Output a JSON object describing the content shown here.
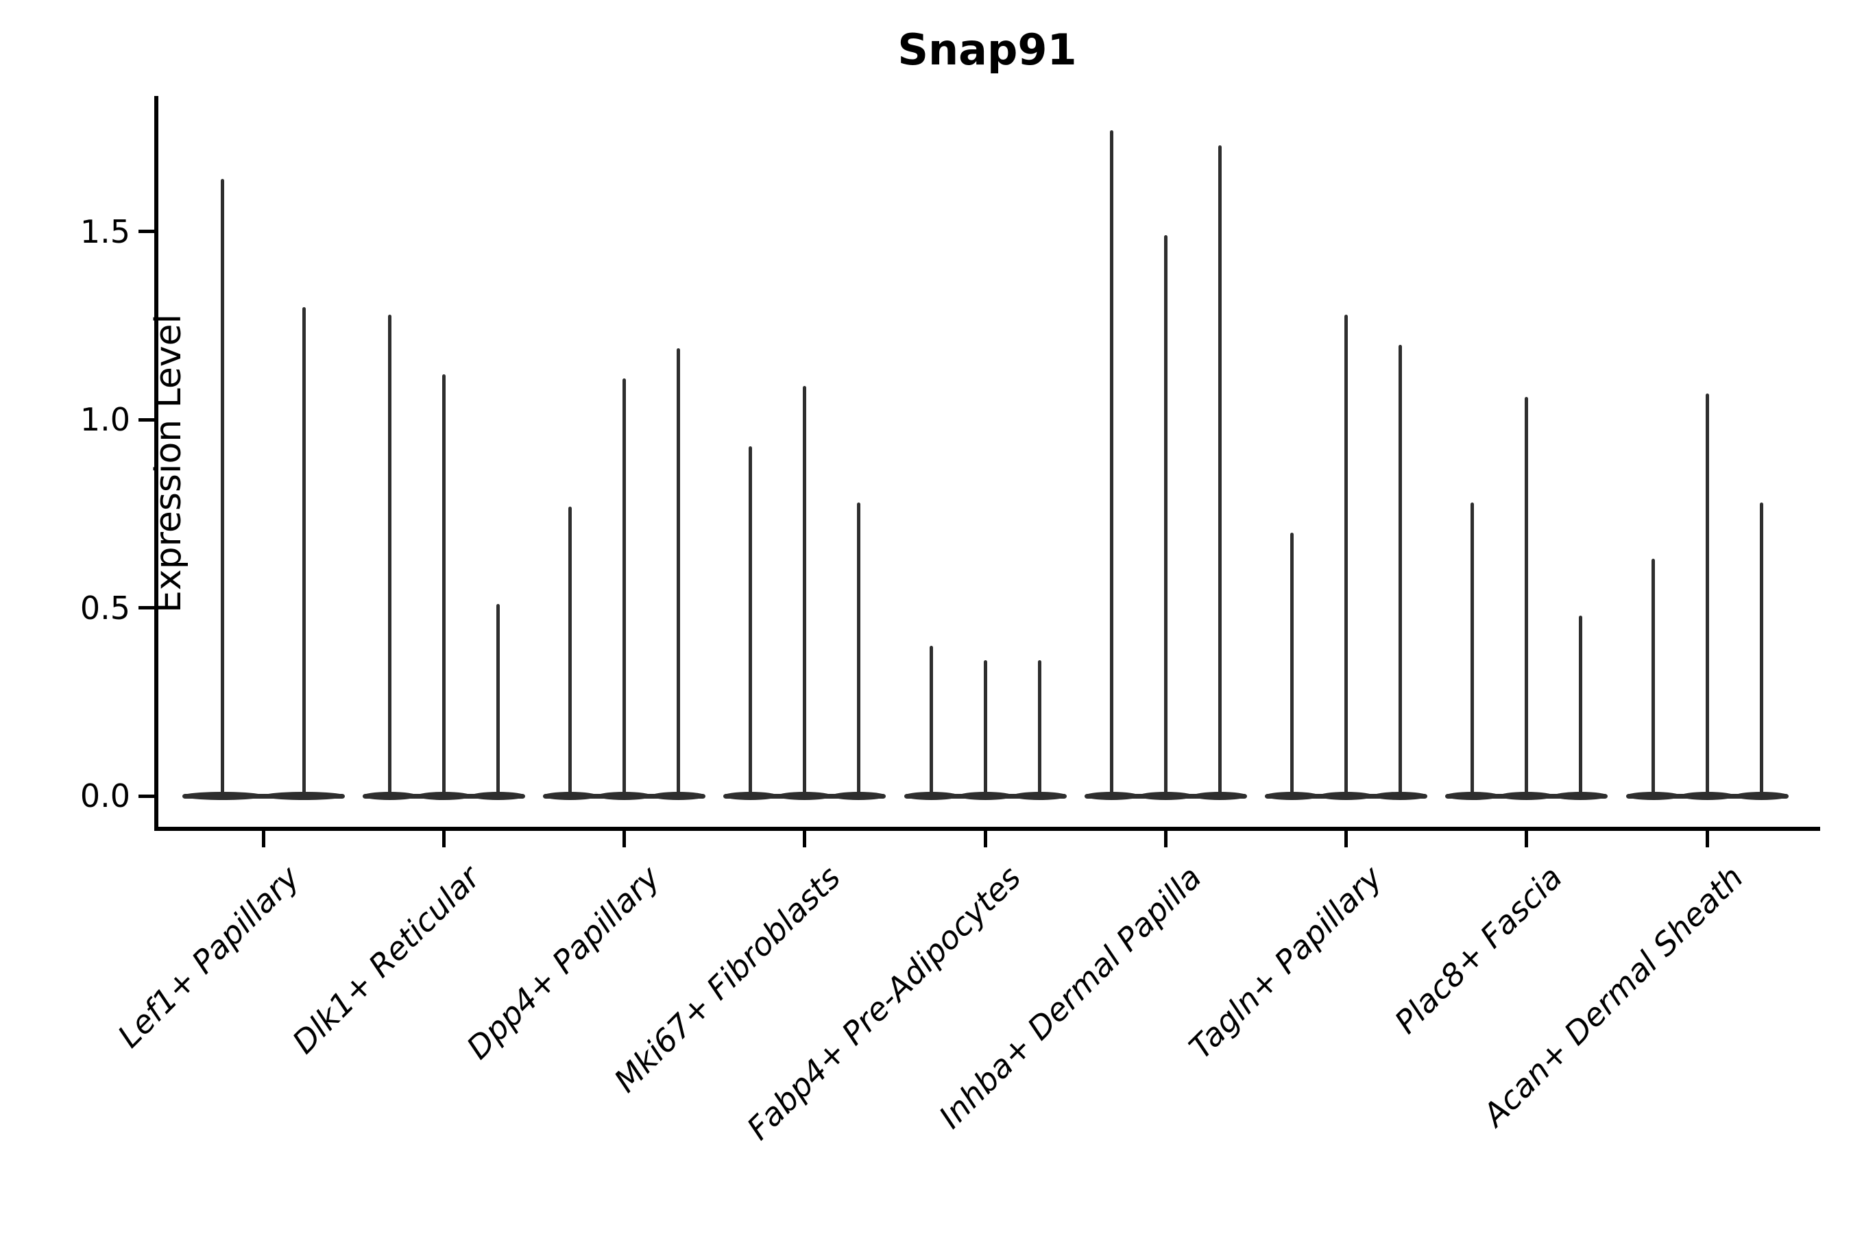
{
  "figure": {
    "title": "Snap91",
    "ylabel": "Expression Level"
  },
  "chart_data": {
    "type": "violin",
    "title": "Snap91",
    "xlabel": "",
    "ylabel": "Expression Level",
    "ylim": [
      -0.09,
      1.86
    ],
    "yticks": [
      "0.0",
      "0.5",
      "1.0",
      "1.5"
    ],
    "ytick_values": [
      0.0,
      0.5,
      1.0,
      1.5
    ],
    "grid": false,
    "legend_position": "none",
    "categories": [
      "Lef1+ Papillary",
      "Dlk1+ Reticular",
      "Dpp4+ Papillary",
      "Mki67+ Fibroblasts",
      "Fabp4+ Pre-Adipocytes",
      "Inhba+ Dermal Papilla",
      "Tagln+ Papillary",
      "Plac8+ Fascia",
      "Acan+ Dermal Sheath"
    ],
    "violins": [
      [
        1.64,
        1.3
      ],
      [
        1.28,
        1.12,
        0.51
      ],
      [
        0.77,
        1.11,
        1.19
      ],
      [
        0.93,
        1.09,
        0.78
      ],
      [
        0.4,
        0.36,
        0.36
      ],
      [
        1.77,
        1.49,
        1.73
      ],
      [
        0.7,
        1.28,
        1.2
      ],
      [
        0.78,
        1.06,
        0.48
      ],
      [
        0.63,
        1.07,
        0.78
      ]
    ],
    "colors": {
      "violin": "#2e2e2e",
      "axis": "#000000",
      "background": "#ffffff"
    }
  }
}
